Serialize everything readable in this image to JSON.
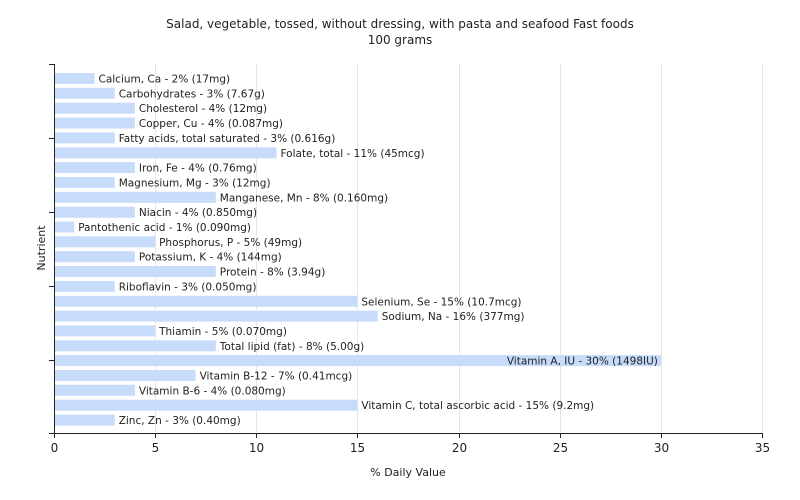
{
  "chart_data": {
    "type": "bar",
    "orientation": "horizontal",
    "title": "Salad, vegetable, tossed, without dressing, with pasta and seafood Fast foods",
    "subtitle": "100 grams",
    "xlabel": "% Daily Value",
    "ylabel": "Nutrient",
    "xlim": [
      0,
      35
    ],
    "xticks": [
      0,
      5,
      10,
      15,
      20,
      25,
      30,
      35
    ],
    "grid": true,
    "bar_color": "#c6dcfa",
    "categories": [
      "Calcium, Ca",
      "Carbohydrates",
      "Cholesterol",
      "Copper, Cu",
      "Fatty acids, total saturated",
      "Folate, total",
      "Iron, Fe",
      "Magnesium, Mg",
      "Manganese, Mn",
      "Niacin",
      "Pantothenic acid",
      "Phosphorus, P",
      "Potassium, K",
      "Protein",
      "Riboflavin",
      "Selenium, Se",
      "Sodium, Na",
      "Thiamin",
      "Total lipid (fat)",
      "Vitamin A, IU",
      "Vitamin B-12",
      "Vitamin B-6",
      "Vitamin C, total ascorbic acid",
      "Zinc, Zn"
    ],
    "values": [
      2,
      3,
      4,
      4,
      3,
      11,
      4,
      3,
      8,
      4,
      1,
      5,
      4,
      8,
      3,
      15,
      16,
      5,
      8,
      30,
      7,
      4,
      15,
      3
    ],
    "labels": [
      "Calcium, Ca - 2% (17mg)",
      "Carbohydrates - 3% (7.67g)",
      "Cholesterol - 4% (12mg)",
      "Copper, Cu - 4% (0.087mg)",
      "Fatty acids, total saturated - 3% (0.616g)",
      "Folate, total - 11% (45mcg)",
      "Iron, Fe - 4% (0.76mg)",
      "Magnesium, Mg - 3% (12mg)",
      "Manganese, Mn - 8% (0.160mg)",
      "Niacin - 4% (0.850mg)",
      "Pantothenic acid - 1% (0.090mg)",
      "Phosphorus, P - 5% (49mg)",
      "Potassium, K - 4% (144mg)",
      "Protein - 8% (3.94g)",
      "Riboflavin - 3% (0.050mg)",
      "Selenium, Se - 15% (10.7mcg)",
      "Sodium, Na - 16% (377mg)",
      "Thiamin - 5% (0.070mg)",
      "Total lipid (fat) - 8% (5.00g)",
      "Vitamin A, IU - 30% (1498IU)",
      "Vitamin B-12 - 7% (0.41mcg)",
      "Vitamin B-6 - 4% (0.080mg)",
      "Vitamin C, total ascorbic acid - 15% (9.2mg)",
      "Zinc, Zn - 3% (0.40mg)"
    ]
  }
}
